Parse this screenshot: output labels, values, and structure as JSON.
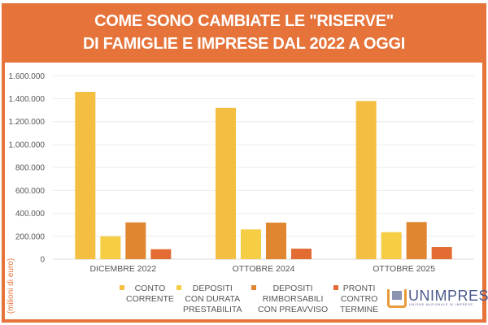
{
  "title": {
    "line1": "COME SONO CAMBIATE LE \"RISERVE\"",
    "line2": "DI FAMIGLIE E IMPRESE DAL 2022 A OGGI"
  },
  "logo": {
    "name": "UNIMPRESA",
    "subtitle": "UNIONE NAZIONALE DI IMPRESE"
  },
  "colors": {
    "frame": "#E5733A"
  },
  "chart_data": {
    "type": "bar",
    "title": "COME SONO CAMBIATE LE \"RISERVE\" DI FAMIGLIE E IMPRESE DAL 2022 A OGGI",
    "ylabel": "(milioni di euro)",
    "xlabel": "",
    "ylim": [
      0,
      1600000
    ],
    "yticks": [
      "0",
      "200.000",
      "400.000",
      "600.000",
      "800.000",
      "1.000.000",
      "1.200.000",
      "1.400.000",
      "1.600.000"
    ],
    "grid": true,
    "legend_position": "bottom",
    "categories": [
      "DICEMBRE 2022",
      "OTTOBRE 2024",
      "OTTOBRE 2025"
    ],
    "series": [
      {
        "name": "CONTO\nCORRENTE",
        "color": "#F4BE41",
        "values": [
          1460000,
          1320000,
          1380000
        ]
      },
      {
        "name": "DEPOSITI\nCON DURATA\nPRESTABILITA",
        "color": "#F6CE46",
        "values": [
          200000,
          260000,
          236000
        ]
      },
      {
        "name": "DEPOSITI\nRIMBORSABILI\nCON PREAVVISO",
        "color": "#E08530",
        "values": [
          321000,
          319000,
          324000
        ]
      },
      {
        "name": "PRONTI\nCONTRO\nTERMINE",
        "color": "#E36C35",
        "values": [
          87000,
          92000,
          106000
        ]
      }
    ]
  }
}
